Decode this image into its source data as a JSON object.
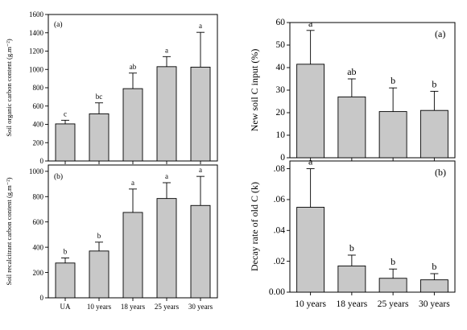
{
  "chart_data": [
    {
      "id": "left_a",
      "type": "bar",
      "panel_label": "(a)",
      "ylabel": "Soil organic carbon content (g.m⁻²)",
      "categories": [
        "UA",
        "10 years",
        "18 years",
        "25 years",
        "30 years"
      ],
      "values": [
        405,
        515,
        790,
        1030,
        1025
      ],
      "errors": [
        40,
        120,
        170,
        110,
        380
      ],
      "significance": [
        "c",
        "bc",
        "ab",
        "a",
        "a"
      ],
      "ylim": [
        0,
        1600
      ],
      "yticks": [
        0,
        200,
        400,
        600,
        800,
        1000,
        1200,
        1400,
        1600
      ],
      "show_xticklabels": false
    },
    {
      "id": "left_b",
      "type": "bar",
      "panel_label": "(b)",
      "ylabel": "Soil recalcitrant carbon content (g.m⁻²)",
      "categories": [
        "UA",
        "10 years",
        "18 years",
        "25 years",
        "30 years"
      ],
      "values": [
        275,
        370,
        675,
        785,
        730
      ],
      "errors": [
        40,
        70,
        185,
        125,
        230
      ],
      "significance": [
        "b",
        "b",
        "a",
        "a",
        "a"
      ],
      "ylim": [
        0,
        1050
      ],
      "yticks": [
        0,
        200,
        400,
        600,
        800,
        1000
      ],
      "show_xticklabels": true
    },
    {
      "id": "right_a",
      "type": "bar",
      "panel_label": "(a)",
      "ylabel": "New soil C input (%)",
      "categories": [
        "10 years",
        "18 years",
        "25 years",
        "30 years"
      ],
      "values": [
        41.5,
        27,
        20.5,
        21
      ],
      "errors": [
        15,
        8,
        10.5,
        8.5
      ],
      "significance": [
        "a",
        "ab",
        "b",
        "b"
      ],
      "ylim": [
        0,
        60
      ],
      "yticks": [
        0,
        10,
        20,
        30,
        40,
        50,
        60
      ],
      "show_xticklabels": false
    },
    {
      "id": "right_b",
      "type": "bar",
      "panel_label": "(b)",
      "ylabel": "Decay rate of old C (k)",
      "categories": [
        "10 years",
        "18 years",
        "25 years",
        "30 years"
      ],
      "values": [
        0.055,
        0.017,
        0.009,
        0.008
      ],
      "errors": [
        0.025,
        0.007,
        0.006,
        0.004
      ],
      "significance": [
        "a",
        "b",
        "b",
        "b"
      ],
      "ylim": [
        0,
        0.085
      ],
      "yticks": [
        0,
        0.02,
        0.04,
        0.06,
        0.08
      ],
      "ytick_labels": [
        "0.00",
        ".02",
        ".04",
        ".06",
        ".08"
      ],
      "show_xticklabels": true
    }
  ]
}
